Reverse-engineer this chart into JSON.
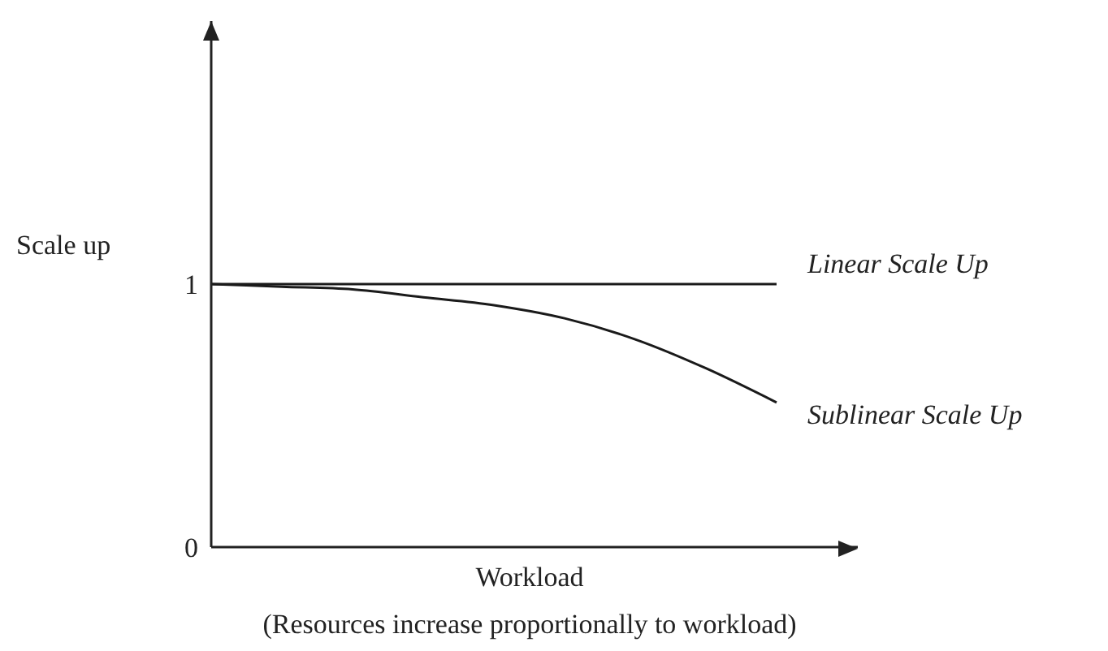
{
  "chart_data": {
    "type": "line",
    "ylabel": "Scale up",
    "xlabel": "Workload",
    "annotations": [
      "(Resources increase proportionally to workload)"
    ],
    "categories": [
      null,
      null,
      null,
      null,
      null,
      null,
      null,
      null,
      null
    ],
    "series": [
      {
        "name": "Linear Scale Up",
        "color": "#1a1a1a",
        "values": [
          1,
          1,
          1,
          1,
          1,
          1,
          1,
          1,
          1
        ]
      },
      {
        "name": "Sublinear Scale Up",
        "color": "#1a1a1a",
        "values": [
          1,
          0.99,
          0.98,
          0.95,
          0.92,
          0.87,
          0.79,
          0.68,
          0.55
        ]
      }
    ],
    "ylim": [
      0,
      2
    ],
    "yticks": [
      0,
      1
    ],
    "tick_labels": "y",
    "grid": false,
    "marker": "none",
    "line_style": "solid"
  }
}
